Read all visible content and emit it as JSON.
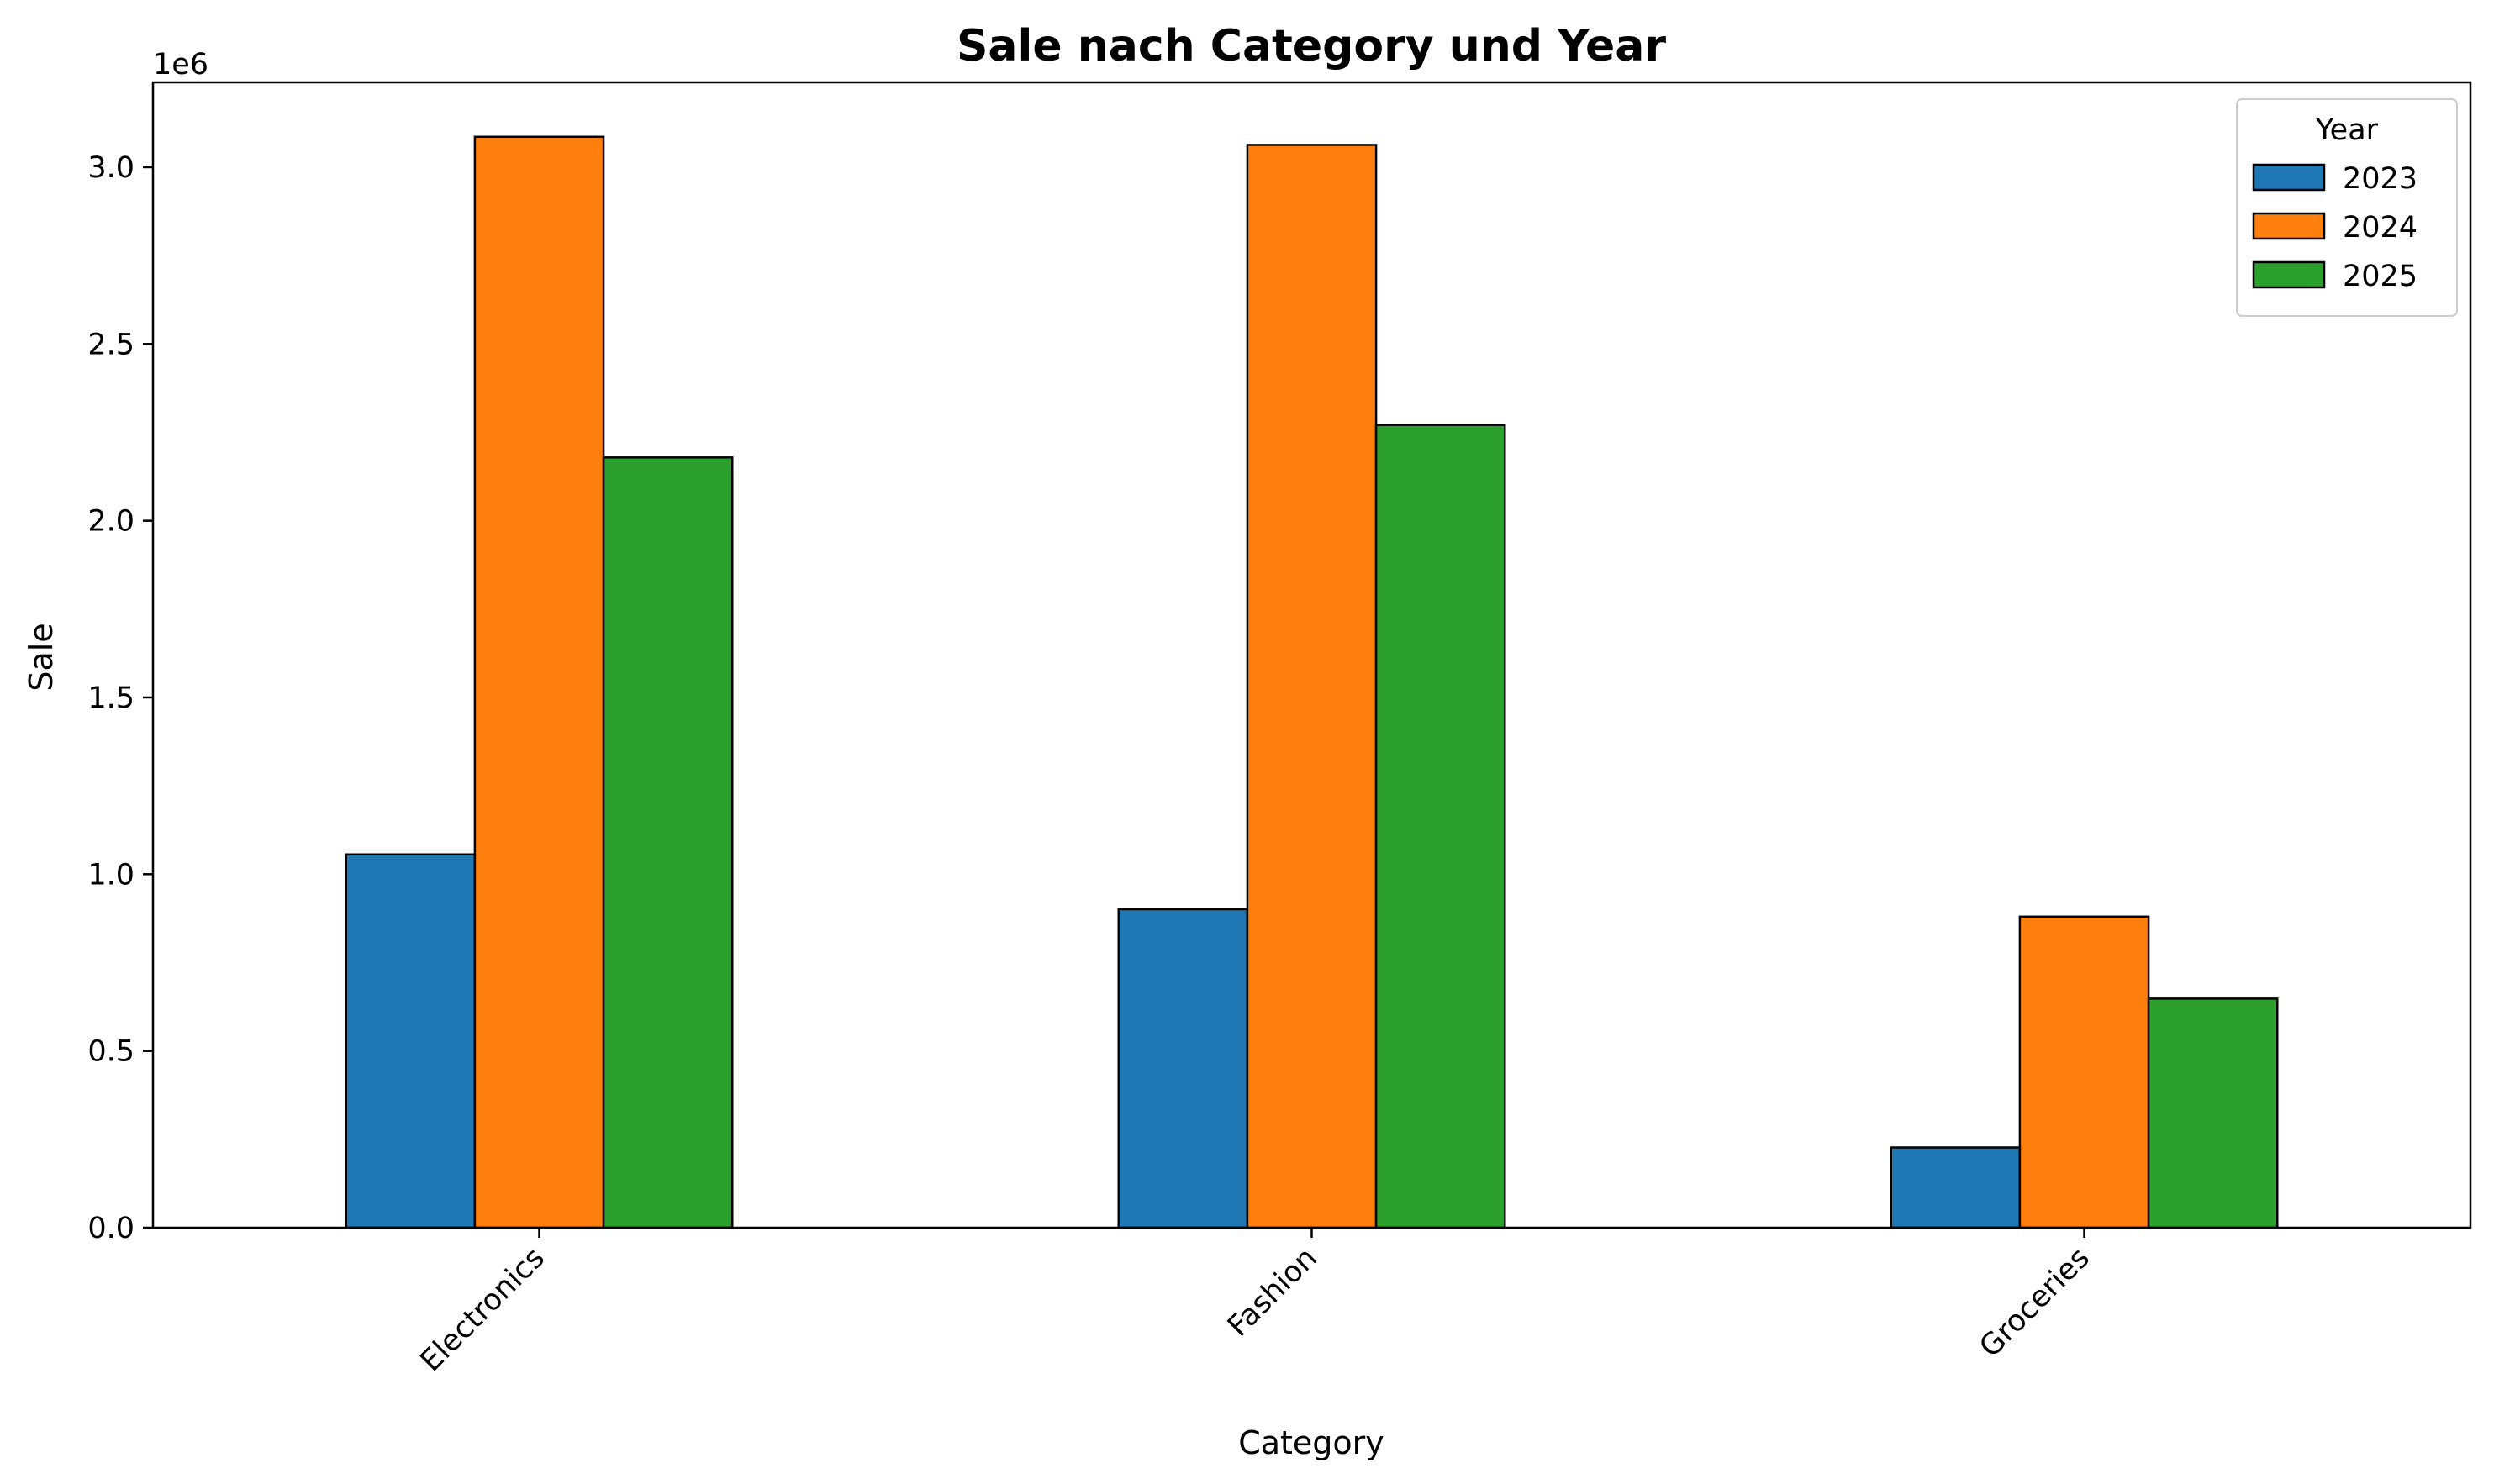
{
  "chart_data": {
    "type": "bar",
    "title": "Sale nach Category und Year",
    "xlabel": "Category",
    "ylabel": "Sale",
    "offset_label": "1e6",
    "categories": [
      "Electronics",
      "Fashion",
      "Groceries"
    ],
    "series": [
      {
        "name": "2023",
        "color": "#1f77b4",
        "values": [
          1056000,
          901000,
          227000
        ]
      },
      {
        "name": "2024",
        "color": "#ff7f0e",
        "values": [
          3086000,
          3063000,
          880000
        ]
      },
      {
        "name": "2025",
        "color": "#2ca02c",
        "values": [
          2179000,
          2271000,
          648000
        ]
      }
    ],
    "ylim": [
      0,
      3240000
    ],
    "yticks": [
      0,
      500000,
      1000000,
      1500000,
      2000000,
      2500000,
      3000000
    ],
    "ytick_labels": [
      "0.0",
      "0.5",
      "1.0",
      "1.5",
      "2.0",
      "2.5",
      "3.0"
    ],
    "legend": {
      "title": "Year",
      "placement": "top-right"
    },
    "grid": false
  }
}
